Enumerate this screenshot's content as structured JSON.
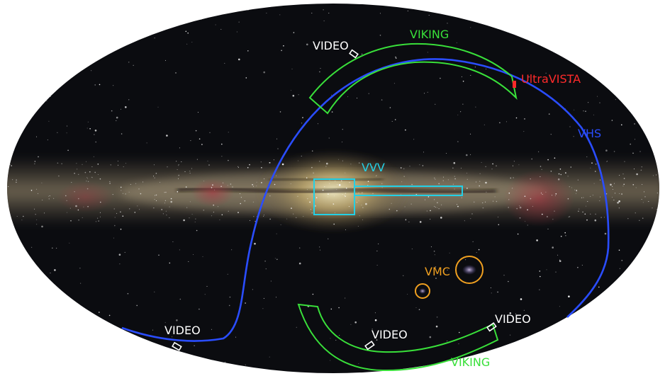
{
  "map": {
    "surveys": {
      "viking": {
        "label": "VIKING",
        "color": "#39e03a"
      },
      "video": {
        "label": "VIDEO",
        "color": "#ffffff"
      },
      "ultravista": {
        "label": "UltraVISTA",
        "color": "#ff2a2a"
      },
      "vhs": {
        "label": "VHS",
        "color": "#2a4dff"
      },
      "vvv": {
        "label": "VVV",
        "color": "#23d0e6"
      },
      "vmc": {
        "label": "VMC",
        "color": "#f0a020"
      }
    }
  }
}
